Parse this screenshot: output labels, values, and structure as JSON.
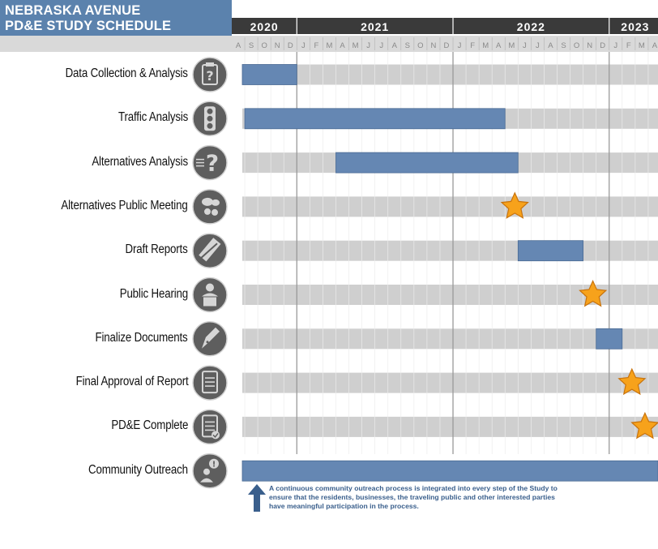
{
  "title": {
    "line1": "NEBRASKA AVENUE",
    "line2": "PD&E STUDY SCHEDULE"
  },
  "colors": {
    "header_blue": "#5b82ad",
    "year_bar": "#3a3a3a",
    "month_bar": "#d9d9d9",
    "track": "#cfcfcf",
    "task_bar": "#6587b3",
    "icon_circle": "#5e5e5e",
    "star": "#f7a21b",
    "note_text": "#3a5f8c"
  },
  "chart_data": {
    "type": "gantt",
    "years": [
      "2020",
      "2021",
      "2022",
      "2023"
    ],
    "months": [
      "A",
      "S",
      "O",
      "N",
      "D",
      "J",
      "F",
      "M",
      "A",
      "M",
      "J",
      "J",
      "A",
      "S",
      "O",
      "N",
      "D",
      "J",
      "F",
      "M",
      "A",
      "M",
      "J",
      "J",
      "A",
      "S",
      "O",
      "N",
      "D",
      "J",
      "F",
      "M",
      "A"
    ],
    "timeline_start": "2020-08",
    "tasks": [
      {
        "label": "Data Collection & Analysis",
        "icon": "clipboard-question-icon",
        "kind": "bar",
        "start": "2020-08",
        "end": "2020-12"
      },
      {
        "label": "Traffic Analysis",
        "icon": "traffic-light-icon",
        "kind": "bar",
        "start": "2020-09",
        "end": "2022-04"
      },
      {
        "label": "Alternatives Analysis",
        "icon": "question-mark-icon",
        "kind": "bar",
        "start": "2021-04",
        "end": "2022-05"
      },
      {
        "label": "Alternatives Public Meeting",
        "icon": "speech-bubbles-icon",
        "kind": "milestone",
        "at": "2022-05"
      },
      {
        "label": "Draft  Reports",
        "icon": "pencil-icon",
        "kind": "bar",
        "start": "2022-06",
        "end": "2022-10"
      },
      {
        "label": "Public Hearing",
        "icon": "speaker-podium-icon",
        "kind": "milestone",
        "at": "2022-11"
      },
      {
        "label": "Finalize Documents",
        "icon": "pen-nib-icon",
        "kind": "bar",
        "start": "2022-12",
        "end": "2023-01"
      },
      {
        "label": "Final  Approval of Report",
        "icon": "document-icon",
        "kind": "milestone",
        "at": "2023-02"
      },
      {
        "label": "PD&E Complete",
        "icon": "document-check-icon",
        "kind": "milestone",
        "at": "2023-03"
      },
      {
        "label": "Community Outreach",
        "icon": "person-exclamation-icon",
        "kind": "bar",
        "start": "2020-08",
        "end": "2023-04"
      }
    ]
  },
  "note": "A continuous community outreach process is integrated into every step of the Study to ensure that the residents, businesses, the traveling public and other interested parties have meaningful participation in the process."
}
